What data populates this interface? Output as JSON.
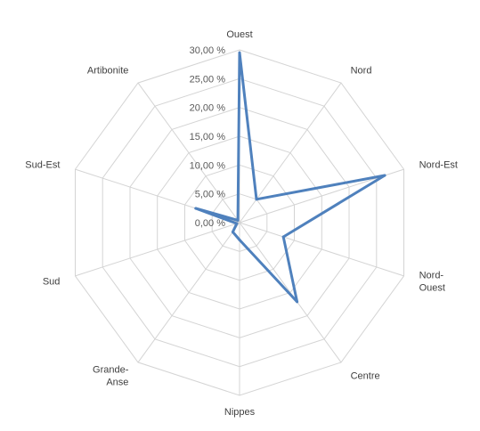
{
  "chart_data": {
    "type": "radar",
    "categories": [
      "Ouest",
      "Nord",
      "Nord-Est",
      "Nord-Ouest",
      "Centre",
      "Nippes",
      "Grande-Anse",
      "Sud",
      "Sud-Est",
      "Artibonite"
    ],
    "category_labels": [
      [
        "Ouest"
      ],
      [
        "Nord"
      ],
      [
        "Nord-Est"
      ],
      [
        "Nord-",
        "Ouest"
      ],
      [
        "Centre"
      ],
      [
        "Nippes"
      ],
      [
        "Grande-",
        "Anse"
      ],
      [
        "Sud"
      ],
      [
        "Sud-Est"
      ],
      [
        "Artibonite"
      ]
    ],
    "tick_values": [
      0,
      5,
      10,
      15,
      20,
      25,
      30
    ],
    "tick_labels": [
      "0,00 %",
      "5,00 %",
      "10,00 %",
      "15,00 %",
      "20,00 %",
      "25,00 %",
      "30,00 %"
    ],
    "ylim": [
      0,
      30
    ],
    "series": [
      {
        "values": [
          29.5,
          5.0,
          26.5,
          8.0,
          17.0,
          3.0,
          2.0,
          0.5,
          8.0,
          0.5
        ],
        "color": "#4f81bd"
      }
    ],
    "grid": true,
    "legend": "none",
    "title": ""
  }
}
